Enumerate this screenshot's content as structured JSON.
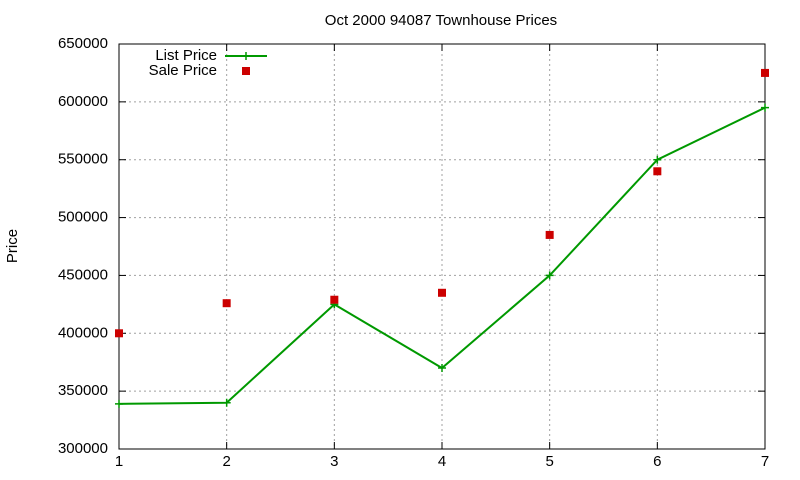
{
  "chart_data": {
    "type": "line",
    "title": "Oct 2000 94087 Townhouse Prices",
    "ylabel": "Price",
    "x": [
      1,
      2,
      3,
      4,
      5,
      6,
      7
    ],
    "series": [
      {
        "name": "List Price",
        "color": "#009900",
        "style": "linespoints",
        "values": [
          339000,
          340000,
          425000,
          370000,
          450000,
          550000,
          595000
        ]
      },
      {
        "name": "Sale Price",
        "color": "#cc0000",
        "style": "points",
        "values": [
          400000,
          426000,
          429000,
          435000,
          485000,
          540000,
          625000
        ]
      }
    ],
    "xlim": [
      1,
      7
    ],
    "xticks": [
      1,
      2,
      3,
      4,
      5,
      6,
      7
    ],
    "ylim": [
      300000,
      650000
    ],
    "yticks": [
      300000,
      350000,
      400000,
      450000,
      500000,
      550000,
      600000,
      650000
    ],
    "grid": true,
    "legend": "top-left"
  }
}
